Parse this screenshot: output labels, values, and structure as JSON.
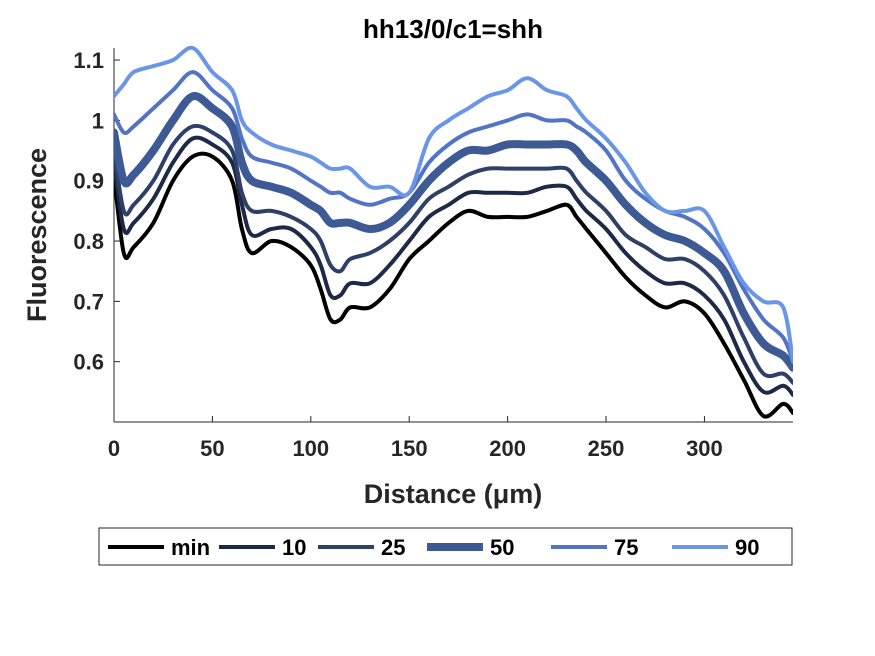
{
  "chart_data": {
    "type": "line",
    "title": "hh13/0/c1=shh",
    "xlabel": "Distance (μm)",
    "ylabel": "Fluorescence",
    "xlim": [
      0,
      345
    ],
    "ylim": [
      0.5,
      1.12
    ],
    "xticks": [
      0,
      50,
      100,
      150,
      200,
      250,
      300
    ],
    "yticks": [
      0.6,
      0.7,
      0.8,
      0.9,
      1,
      1.1
    ],
    "xtick_labels": [
      "0",
      "50",
      "100",
      "150",
      "200",
      "250",
      "300"
    ],
    "ytick_labels": [
      "0.6",
      "0.7",
      "0.8",
      "0.9",
      "1",
      "1.1"
    ],
    "grid": false,
    "legend_position": "bottom",
    "x": [
      0,
      5,
      10,
      20,
      30,
      40,
      50,
      60,
      65,
      70,
      80,
      90,
      100,
      105,
      110,
      115,
      120,
      130,
      140,
      150,
      160,
      170,
      180,
      190,
      200,
      210,
      220,
      230,
      235,
      240,
      250,
      260,
      270,
      280,
      290,
      300,
      310,
      320,
      330,
      340,
      345
    ],
    "series": [
      {
        "name": "min",
        "color": "#000000",
        "width": 4,
        "values": [
          0.91,
          0.78,
          0.79,
          0.83,
          0.9,
          0.94,
          0.94,
          0.9,
          0.82,
          0.78,
          0.8,
          0.79,
          0.76,
          0.72,
          0.67,
          0.67,
          0.69,
          0.69,
          0.72,
          0.77,
          0.8,
          0.83,
          0.85,
          0.84,
          0.84,
          0.84,
          0.85,
          0.86,
          0.84,
          0.82,
          0.78,
          0.74,
          0.71,
          0.69,
          0.7,
          0.68,
          0.63,
          0.57,
          0.51,
          0.53,
          0.515
        ]
      },
      {
        "name": "10",
        "color": "#1c2a48",
        "width": 4,
        "values": [
          0.93,
          0.82,
          0.83,
          0.87,
          0.93,
          0.97,
          0.96,
          0.93,
          0.86,
          0.81,
          0.82,
          0.82,
          0.79,
          0.76,
          0.71,
          0.71,
          0.73,
          0.73,
          0.76,
          0.8,
          0.84,
          0.86,
          0.88,
          0.88,
          0.88,
          0.88,
          0.89,
          0.89,
          0.87,
          0.85,
          0.82,
          0.78,
          0.75,
          0.73,
          0.73,
          0.71,
          0.67,
          0.6,
          0.55,
          0.56,
          0.545
        ]
      },
      {
        "name": "25",
        "color": "#2e4068",
        "width": 4,
        "values": [
          0.95,
          0.85,
          0.86,
          0.9,
          0.96,
          0.99,
          0.98,
          0.95,
          0.88,
          0.85,
          0.85,
          0.84,
          0.82,
          0.8,
          0.76,
          0.75,
          0.77,
          0.78,
          0.8,
          0.83,
          0.87,
          0.89,
          0.91,
          0.92,
          0.92,
          0.92,
          0.92,
          0.92,
          0.9,
          0.88,
          0.85,
          0.81,
          0.79,
          0.77,
          0.77,
          0.75,
          0.71,
          0.64,
          0.58,
          0.58,
          0.565
        ]
      },
      {
        "name": "50",
        "color": "#3d5a94",
        "width": 8,
        "values": [
          0.98,
          0.9,
          0.91,
          0.95,
          1.0,
          1.04,
          1.02,
          0.99,
          0.93,
          0.9,
          0.89,
          0.88,
          0.86,
          0.85,
          0.83,
          0.83,
          0.83,
          0.82,
          0.83,
          0.86,
          0.9,
          0.93,
          0.95,
          0.95,
          0.96,
          0.96,
          0.96,
          0.96,
          0.95,
          0.93,
          0.9,
          0.86,
          0.83,
          0.81,
          0.8,
          0.78,
          0.75,
          0.68,
          0.63,
          0.61,
          0.59
        ]
      },
      {
        "name": "75",
        "color": "#5374c4",
        "width": 4,
        "values": [
          1.01,
          0.98,
          0.99,
          1.02,
          1.05,
          1.08,
          1.05,
          1.02,
          0.97,
          0.94,
          0.93,
          0.92,
          0.9,
          0.89,
          0.88,
          0.88,
          0.87,
          0.86,
          0.87,
          0.88,
          0.93,
          0.96,
          0.98,
          0.99,
          1.0,
          1.01,
          1.0,
          1.0,
          0.99,
          0.98,
          0.95,
          0.9,
          0.87,
          0.85,
          0.84,
          0.82,
          0.78,
          0.72,
          0.67,
          0.64,
          0.6
        ]
      },
      {
        "name": "90",
        "color": "#6b96e8",
        "width": 4,
        "values": [
          1.04,
          1.06,
          1.08,
          1.09,
          1.1,
          1.12,
          1.08,
          1.05,
          1.0,
          0.98,
          0.96,
          0.95,
          0.94,
          0.93,
          0.92,
          0.92,
          0.92,
          0.89,
          0.89,
          0.88,
          0.97,
          1.0,
          1.02,
          1.04,
          1.05,
          1.07,
          1.05,
          1.04,
          1.02,
          1.0,
          0.97,
          0.93,
          0.88,
          0.85,
          0.85,
          0.85,
          0.79,
          0.73,
          0.7,
          0.69,
          0.6
        ]
      }
    ]
  }
}
